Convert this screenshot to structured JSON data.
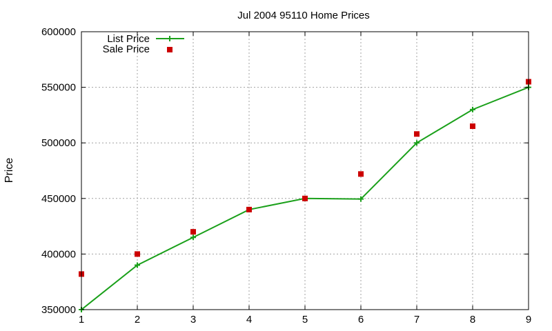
{
  "chart_data": {
    "type": "line",
    "title": "Jul 2004 95110 Home Prices",
    "xlabel": "",
    "ylabel": "Price",
    "x": [
      1,
      2,
      3,
      4,
      5,
      6,
      7,
      8,
      9
    ],
    "xlim": [
      1,
      9
    ],
    "ylim": [
      350000,
      600000
    ],
    "xticks": [
      1,
      2,
      3,
      4,
      5,
      6,
      7,
      8,
      9
    ],
    "yticks": [
      350000,
      400000,
      450000,
      500000,
      550000,
      600000
    ],
    "grid": true,
    "legend_position": "top-left",
    "series": [
      {
        "name": "List Price",
        "style": "linespoints",
        "marker": "plus",
        "color": "#1aa01a",
        "values": [
          350000,
          390000,
          415000,
          440000,
          450000,
          449500,
          500000,
          530000,
          550000
        ]
      },
      {
        "name": "Sale Price",
        "style": "points",
        "marker": "square",
        "color": "#cc0000",
        "values": [
          382000,
          400000,
          420000,
          440000,
          450000,
          472000,
          508000,
          515000,
          555000
        ]
      }
    ]
  }
}
